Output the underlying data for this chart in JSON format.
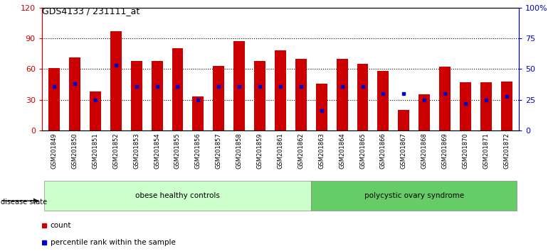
{
  "title": "GDS4133 / 231111_at",
  "samples": [
    "GSM201849",
    "GSM201850",
    "GSM201851",
    "GSM201852",
    "GSM201853",
    "GSM201854",
    "GSM201855",
    "GSM201856",
    "GSM201857",
    "GSM201858",
    "GSM201859",
    "GSM201861",
    "GSM201862",
    "GSM201863",
    "GSM201864",
    "GSM201865",
    "GSM201866",
    "GSM201867",
    "GSM201868",
    "GSM201869",
    "GSM201870",
    "GSM201871",
    "GSM201872"
  ],
  "counts": [
    61,
    71,
    38,
    97,
    68,
    68,
    80,
    33,
    63,
    87,
    68,
    78,
    70,
    46,
    70,
    65,
    58,
    20,
    35,
    62,
    47,
    47,
    48
  ],
  "percentiles": [
    36,
    38,
    25,
    53,
    36,
    36,
    36,
    25,
    36,
    36,
    36,
    36,
    36,
    16,
    36,
    36,
    30,
    30,
    25,
    30,
    22,
    25,
    28
  ],
  "group1_label": "obese healthy controls",
  "group2_label": "polycystic ovary syndrome",
  "group1_count": 13,
  "group2_count": 10,
  "bar_color": "#cc0000",
  "percentile_color": "#0000cc",
  "left_axis_color": "#cc0000",
  "right_axis_color": "#0000cc",
  "ylim_left": [
    0,
    120
  ],
  "ylim_right": [
    0,
    100
  ],
  "yticks_left": [
    0,
    30,
    60,
    90,
    120
  ],
  "ytick_labels_left": [
    "0",
    "30",
    "60",
    "90",
    "120"
  ],
  "yticks_right": [
    0,
    25,
    50,
    75,
    100
  ],
  "ytick_labels_right": [
    "0",
    "25",
    "50",
    "75",
    "100%"
  ],
  "group1_bg": "#ccffcc",
  "group2_bg": "#66cc66",
  "xtick_bg": "#cccccc",
  "disease_state_label": "disease state",
  "legend_count_label": "count",
  "legend_percentile_label": "percentile rank within the sample",
  "bar_width": 0.55,
  "figsize": [
    7.84,
    3.54
  ],
  "dpi": 100
}
